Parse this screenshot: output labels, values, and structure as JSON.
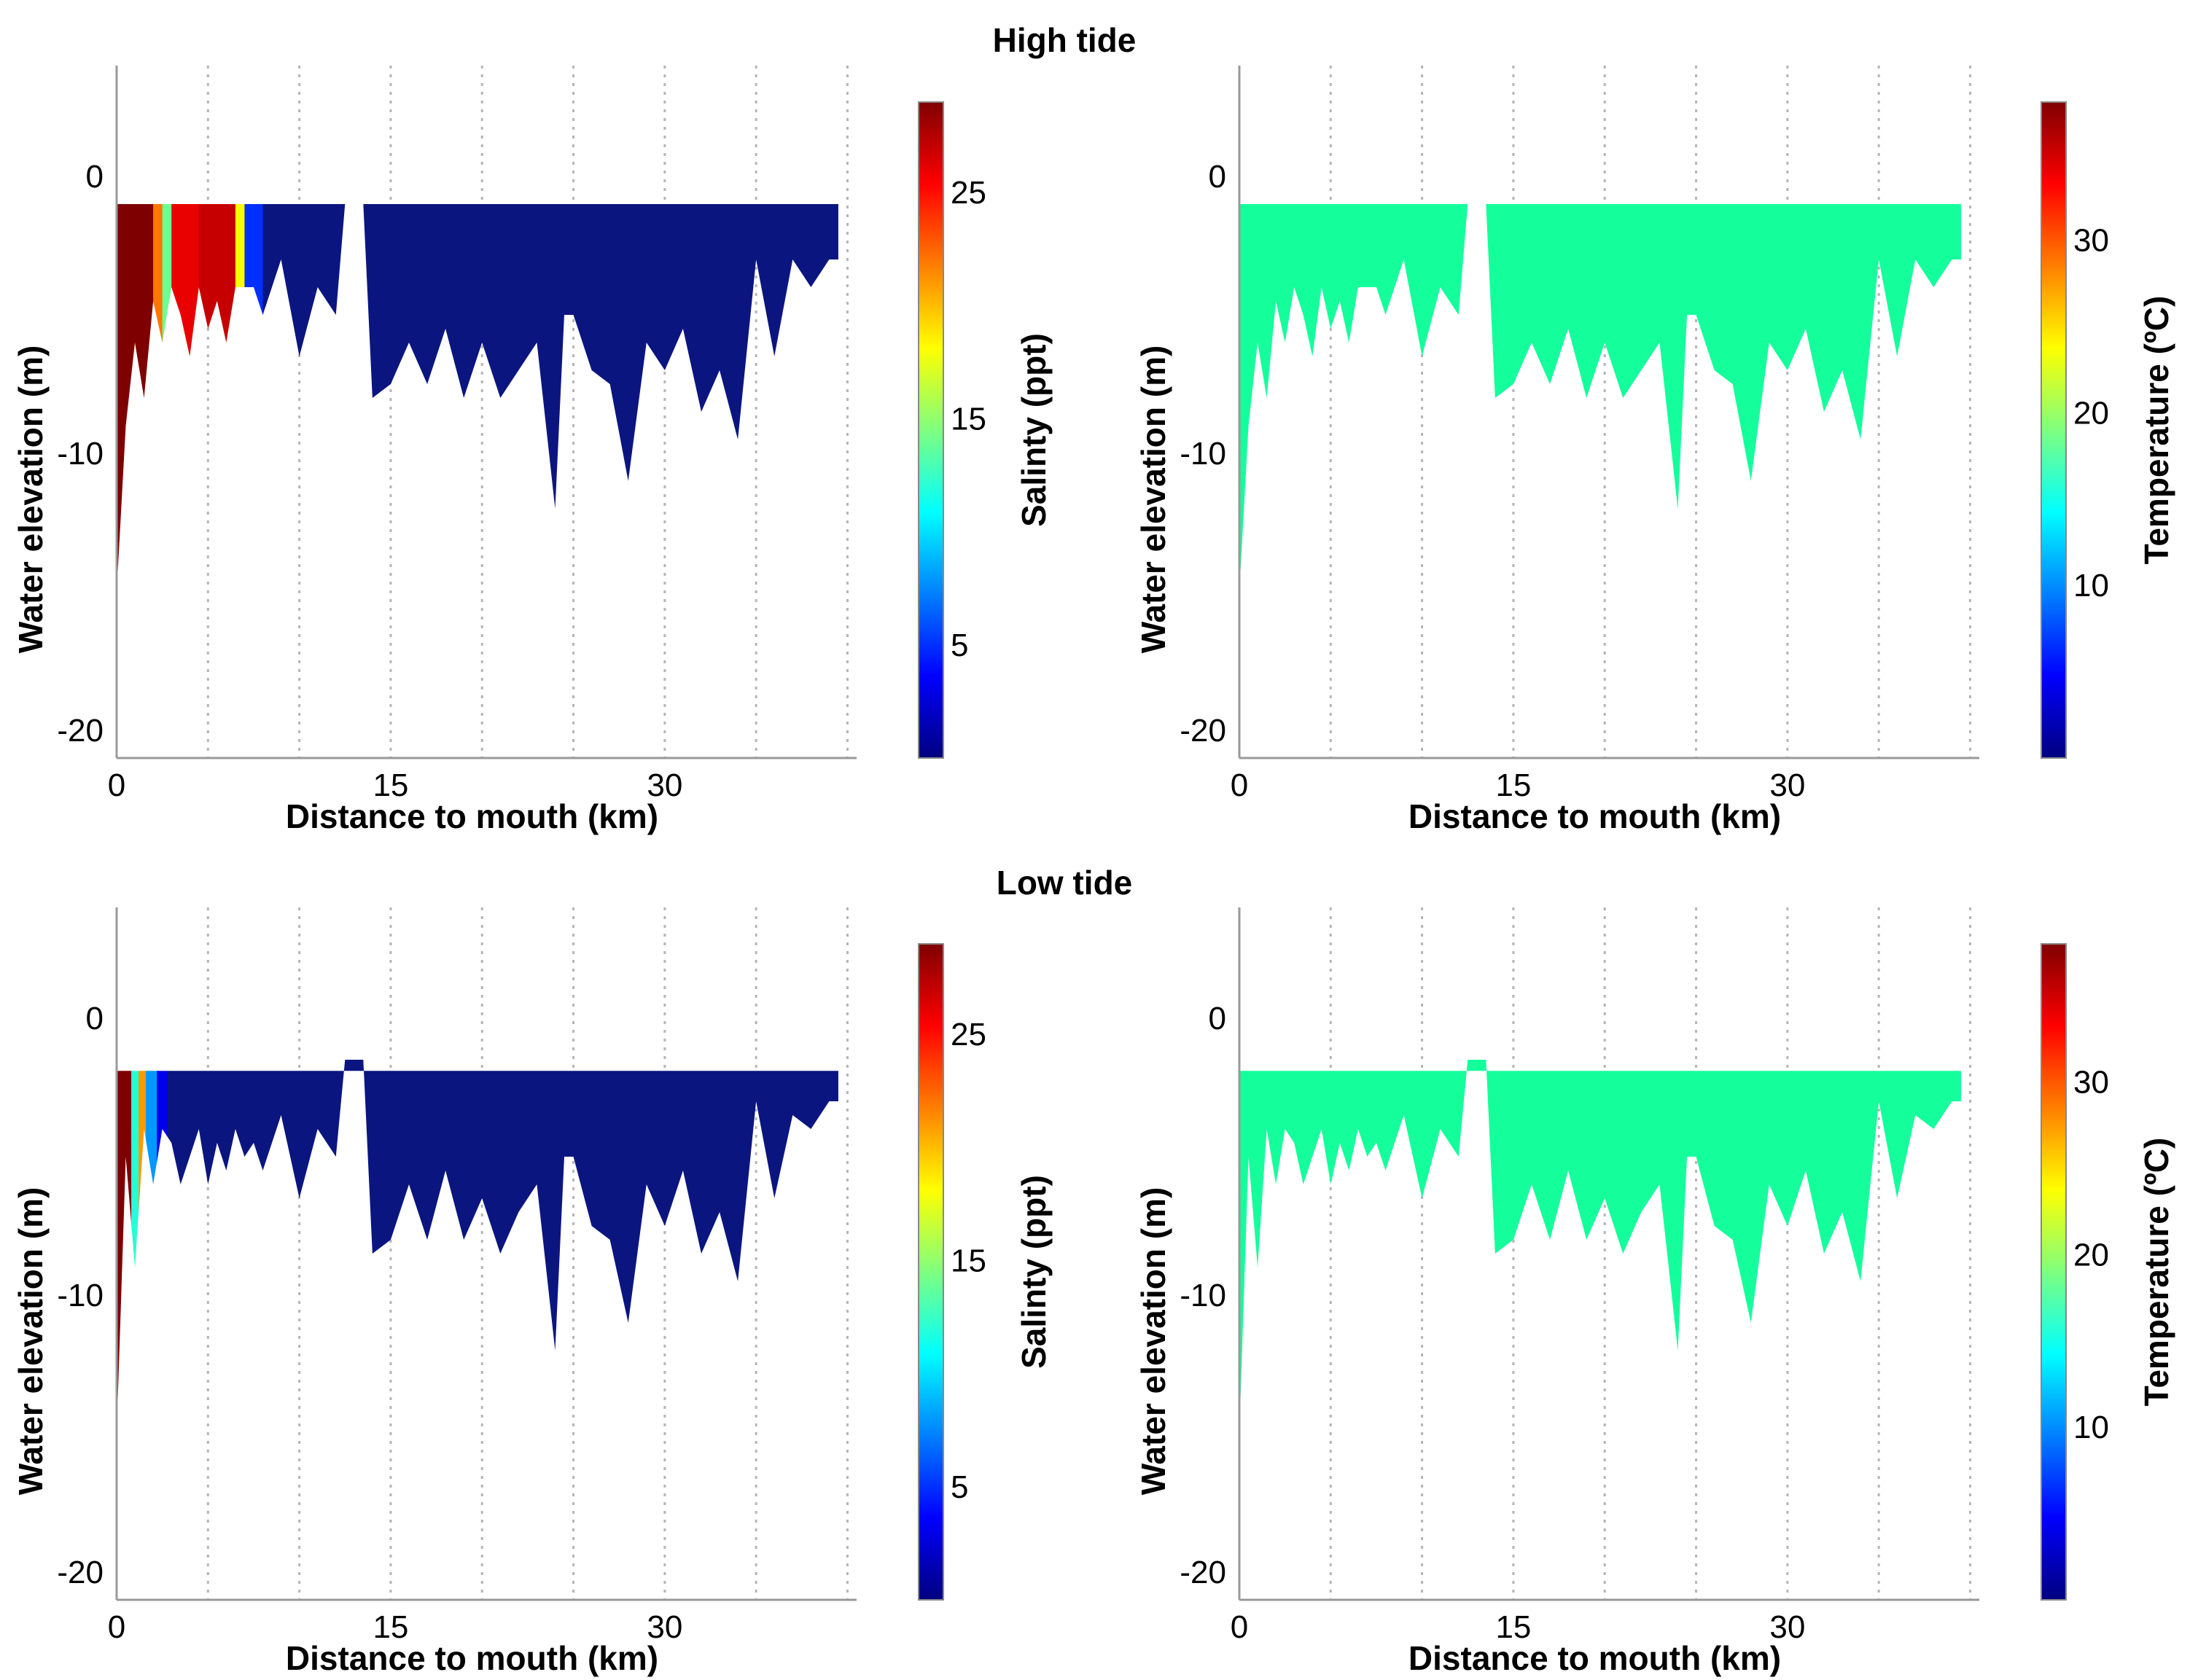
{
  "figure": {
    "high_tide_title": "High tide",
    "low_tide_title": "Low tide"
  },
  "colors": {
    "jet": [
      "#00007f",
      "#0000ff",
      "#007fff",
      "#00ffff",
      "#7fff7f",
      "#ffff00",
      "#ff7f00",
      "#ff0000",
      "#7f0000"
    ],
    "fresh_salinity": "#0b1580",
    "temperature_fill": "#14ff9c"
  },
  "chart_data": [
    {
      "type": "area",
      "panel": "high-tide-salinity",
      "xlabel": "Distance to mouth (km)",
      "ylabel": "Water elevation (m)",
      "xlim": [
        0,
        40.5
      ],
      "ylim": [
        -21,
        4
      ],
      "xticks": [
        0,
        15,
        30
      ],
      "yticks": [
        0,
        -10,
        -20
      ],
      "grid": "dotted vertical lines every 5 km",
      "surface_elevation": -1,
      "colorbar": {
        "label": "Salinty (ppt)",
        "range": [
          0,
          29
        ],
        "ticks": [
          25,
          15,
          5
        ]
      },
      "salinity_segments": [
        {
          "x": [
            0,
            2
          ],
          "value": 29
        },
        {
          "x": [
            2,
            2.5
          ],
          "value": 22
        },
        {
          "x": [
            2.5,
            3
          ],
          "value": 14
        },
        {
          "x": [
            3,
            4.5
          ],
          "value": 26
        },
        {
          "x": [
            4.5,
            6.5
          ],
          "value": 27
        },
        {
          "x": [
            6.5,
            7
          ],
          "value": 18
        },
        {
          "x": [
            7,
            8
          ],
          "value": 5
        },
        {
          "x": [
            8,
            40.5
          ],
          "value": 0
        }
      ],
      "bottom_profile": {
        "x": [
          0,
          0.5,
          1,
          1.5,
          2,
          2.5,
          3,
          3.5,
          4,
          4.5,
          5,
          5.5,
          6,
          6.5,
          7,
          7.5,
          8,
          9,
          10,
          11,
          12,
          12.5,
          13.5,
          14,
          15,
          16,
          17,
          18,
          19,
          20,
          21,
          22,
          23,
          24,
          24.5,
          25,
          26,
          27,
          28,
          29,
          30,
          31,
          32,
          33,
          34,
          35,
          36,
          37,
          38,
          39,
          39.5
        ],
        "depth": [
          -15,
          -9,
          -6,
          -8,
          -4.5,
          -6,
          -4,
          -5,
          -6.5,
          -4,
          -5.5,
          -4.5,
          -6,
          -4,
          -4,
          -4,
          -5,
          -3,
          -6.5,
          -4,
          -5,
          -1,
          -1,
          -8,
          -7.5,
          -6,
          -7.5,
          -5.5,
          -8,
          -6,
          -8,
          -7,
          -6,
          -12,
          -5,
          -5,
          -7,
          -7.5,
          -11,
          -6,
          -7,
          -5.5,
          -8.5,
          -7,
          -9.5,
          -3,
          -6.5,
          -3,
          -4,
          -3,
          -3
        ]
      }
    },
    {
      "type": "area",
      "panel": "high-tide-temperature",
      "xlabel": "Distance to mouth (km)",
      "ylabel": "Water elevation (m)",
      "xlim": [
        0,
        40.5
      ],
      "ylim": [
        -21,
        4
      ],
      "xticks": [
        0,
        15,
        30
      ],
      "yticks": [
        0,
        -10,
        -20
      ],
      "grid": "dotted vertical lines every 5 km",
      "surface_elevation": -1,
      "colorbar": {
        "label": "Temperature (ºC)",
        "range": [
          0,
          38
        ],
        "ticks": [
          30,
          20,
          10
        ]
      },
      "temperature_value": 18,
      "bottom_profile": {
        "x": [
          0,
          0.5,
          1,
          1.5,
          2,
          2.5,
          3,
          3.5,
          4,
          4.5,
          5,
          5.5,
          6,
          6.5,
          7,
          7.5,
          8,
          9,
          10,
          11,
          12,
          12.5,
          13.5,
          14,
          15,
          16,
          17,
          18,
          19,
          20,
          21,
          22,
          23,
          24,
          24.5,
          25,
          26,
          27,
          28,
          29,
          30,
          31,
          32,
          33,
          34,
          35,
          36,
          37,
          38,
          39,
          39.5
        ],
        "depth": [
          -15,
          -9,
          -6,
          -8,
          -4.5,
          -6,
          -4,
          -5,
          -6.5,
          -4,
          -5.5,
          -4.5,
          -6,
          -4,
          -4,
          -4,
          -5,
          -3,
          -6.5,
          -4,
          -5,
          -1,
          -1,
          -8,
          -7.5,
          -6,
          -7.5,
          -5.5,
          -8,
          -6,
          -8,
          -7,
          -6,
          -12,
          -5,
          -5,
          -7,
          -7.5,
          -11,
          -6,
          -7,
          -5.5,
          -8.5,
          -7,
          -9.5,
          -3,
          -6.5,
          -3,
          -4,
          -3,
          -3
        ]
      }
    },
    {
      "type": "area",
      "panel": "low-tide-salinity",
      "xlabel": "Distance to mouth (km)",
      "ylabel": "Water elevation (m)",
      "xlim": [
        0,
        40.5
      ],
      "ylim": [
        -21,
        4
      ],
      "xticks": [
        0,
        15,
        30
      ],
      "yticks": [
        0,
        -10,
        -20
      ],
      "grid": "dotted vertical lines every 5 km",
      "surface_elevation": -1.9,
      "colorbar": {
        "label": "Salinty (ppt)",
        "range": [
          0,
          29
        ],
        "ticks": [
          25,
          15,
          5
        ]
      },
      "salinity_segments": [
        {
          "x": [
            0,
            0.8
          ],
          "value": 29
        },
        {
          "x": [
            0.8,
            1.2
          ],
          "value": 12
        },
        {
          "x": [
            1.2,
            1.6
          ],
          "value": 21
        },
        {
          "x": [
            1.6,
            2.2
          ],
          "value": 8
        },
        {
          "x": [
            2.2,
            2.8
          ],
          "value": 3
        },
        {
          "x": [
            2.8,
            40.5
          ],
          "value": 0
        }
      ],
      "bottom_profile": {
        "x": [
          0,
          0.5,
          1,
          1.5,
          2,
          2.5,
          3,
          3.5,
          4,
          4.5,
          5,
          5.5,
          6,
          6.5,
          7,
          7.5,
          8,
          9,
          10,
          11,
          12,
          12.5,
          13.5,
          14,
          15,
          16,
          17,
          18,
          19,
          20,
          21,
          22,
          23,
          24,
          24.5,
          25,
          26,
          27,
          28,
          29,
          30,
          31,
          32,
          33,
          34,
          35,
          36,
          37,
          38,
          39,
          39.5
        ],
        "depth": [
          -15,
          -5,
          -9,
          -4,
          -6,
          -4,
          -4.5,
          -6,
          -5,
          -4,
          -6,
          -4.5,
          -5.5,
          -4,
          -5,
          -4.5,
          -5.5,
          -3.5,
          -6.5,
          -4,
          -5,
          -1.5,
          -1.5,
          -8.5,
          -8,
          -6,
          -8,
          -5.5,
          -8,
          -6.5,
          -8.5,
          -7,
          -6,
          -12,
          -5,
          -5,
          -7.5,
          -8,
          -11,
          -6,
          -7.5,
          -5.5,
          -8.5,
          -7,
          -9.5,
          -3,
          -6.5,
          -3.5,
          -4,
          -3,
          -3
        ]
      }
    },
    {
      "type": "area",
      "panel": "low-tide-temperature",
      "xlabel": "Distance to mouth (km)",
      "ylabel": "Water elevation (m)",
      "xlim": [
        0,
        40.5
      ],
      "ylim": [
        -21,
        4
      ],
      "xticks": [
        0,
        15,
        30
      ],
      "yticks": [
        0,
        -10,
        -20
      ],
      "grid": "dotted vertical lines every 5 km",
      "surface_elevation": -1.9,
      "colorbar": {
        "label": "Temperature (ºC)",
        "range": [
          0,
          38
        ],
        "ticks": [
          30,
          20,
          10
        ]
      },
      "temperature_value": 18,
      "bottom_profile": {
        "x": [
          0,
          0.5,
          1,
          1.5,
          2,
          2.5,
          3,
          3.5,
          4,
          4.5,
          5,
          5.5,
          6,
          6.5,
          7,
          7.5,
          8,
          9,
          10,
          11,
          12,
          12.5,
          13.5,
          14,
          15,
          16,
          17,
          18,
          19,
          20,
          21,
          22,
          23,
          24,
          24.5,
          25,
          26,
          27,
          28,
          29,
          30,
          31,
          32,
          33,
          34,
          35,
          36,
          37,
          38,
          39,
          39.5
        ],
        "depth": [
          -15,
          -5,
          -9,
          -4,
          -6,
          -4,
          -4.5,
          -6,
          -5,
          -4,
          -6,
          -4.5,
          -5.5,
          -4,
          -5,
          -4.5,
          -5.5,
          -3.5,
          -6.5,
          -4,
          -5,
          -1.5,
          -1.5,
          -8.5,
          -8,
          -6,
          -8,
          -5.5,
          -8,
          -6.5,
          -8.5,
          -7,
          -6,
          -12,
          -5,
          -5,
          -7.5,
          -8,
          -11,
          -6,
          -7.5,
          -5.5,
          -8.5,
          -7,
          -9.5,
          -3,
          -6.5,
          -3.5,
          -4,
          -3,
          -3
        ]
      }
    }
  ]
}
